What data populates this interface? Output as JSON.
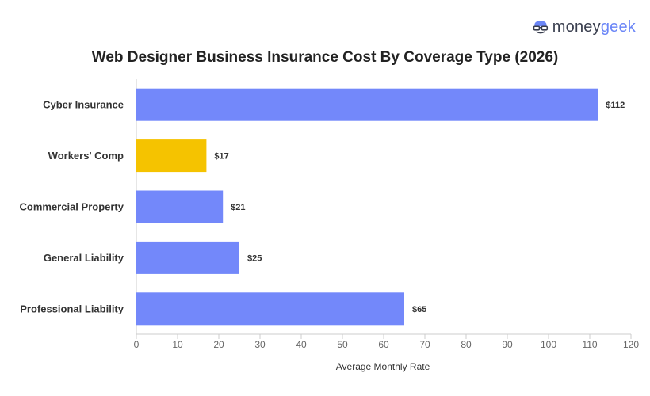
{
  "brand": {
    "name_part1": "money",
    "name_part2": "geek"
  },
  "colors": {
    "bar_default": "#7388fa",
    "bar_highlight": "#f5c300",
    "accent": "#6b86f7"
  },
  "chart_data": {
    "type": "bar",
    "orientation": "horizontal",
    "title": "Web Designer Business Insurance Cost By Coverage Type (2026)",
    "xlabel": "Average Monthly Rate",
    "ylabel": "",
    "xlim": [
      0,
      120
    ],
    "x_ticks": [
      0,
      10,
      20,
      30,
      40,
      50,
      60,
      70,
      80,
      90,
      100,
      110,
      120
    ],
    "grid": false,
    "categories": [
      "Cyber Insurance",
      "Workers' Comp",
      "Commercial Property",
      "General Liability",
      "Professional Liability"
    ],
    "values": [
      112,
      17,
      21,
      25,
      65
    ],
    "data_labels": [
      "$112",
      "$17",
      "$21",
      "$25",
      "$65"
    ],
    "highlight_index": 1
  }
}
